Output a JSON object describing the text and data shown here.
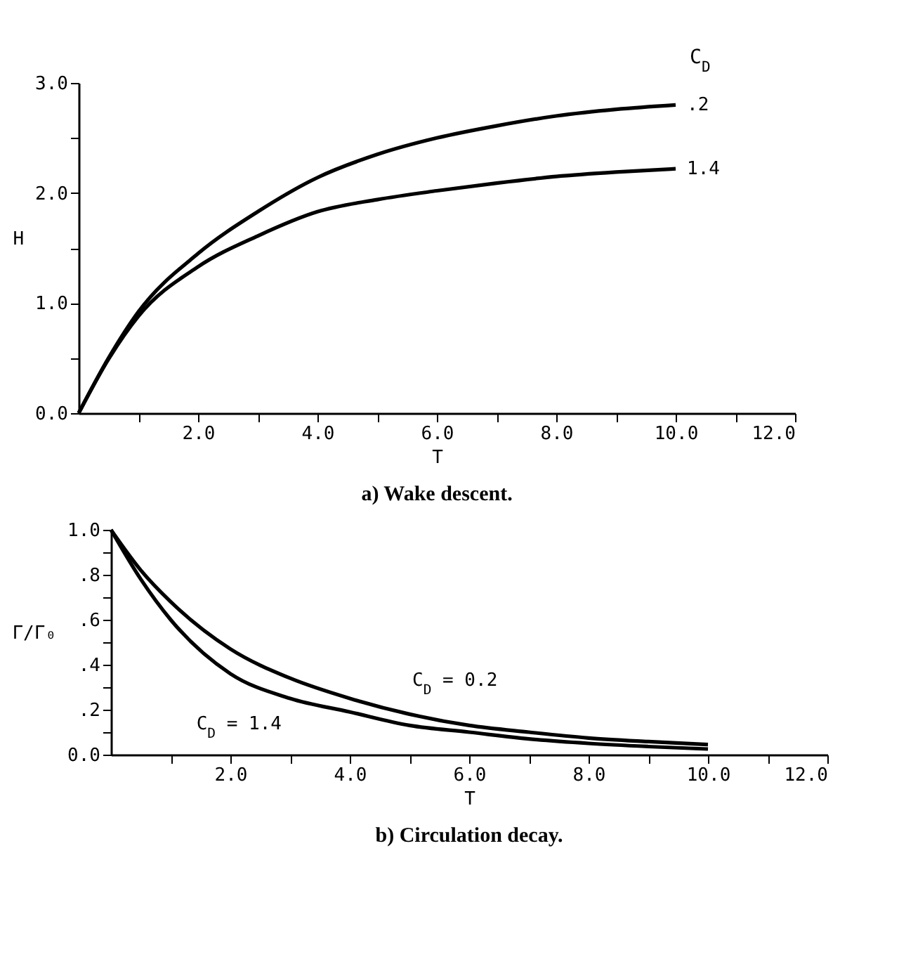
{
  "chart_data": [
    {
      "type": "line",
      "title": "a) Wake descent.",
      "xlabel": "T",
      "ylabel": "H",
      "legend_title": "C$_{D}$",
      "x": [
        0,
        0.5,
        1,
        2,
        3,
        4,
        5,
        6,
        7,
        8,
        9,
        10
      ],
      "series": [
        {
          "name": ".2",
          "color": "#000000",
          "values": [
            0,
            0.5,
            0.92,
            1.45,
            1.83,
            2.14,
            2.35,
            2.5,
            2.61,
            2.7,
            2.76,
            2.8
          ]
        },
        {
          "name": "1.4",
          "color": "#000000",
          "values": [
            0,
            0.49,
            0.88,
            1.33,
            1.61,
            1.83,
            1.94,
            2.02,
            2.09,
            2.15,
            2.19,
            2.22
          ]
        }
      ],
      "xlim": [
        0,
        12
      ],
      "ylim": [
        0,
        3
      ],
      "xticks": [
        {
          "value": 1,
          "label": null
        },
        {
          "value": 2,
          "label": "2.0"
        },
        {
          "value": 3,
          "label": null
        },
        {
          "value": 4,
          "label": "4.0"
        },
        {
          "value": 5,
          "label": null
        },
        {
          "value": 6,
          "label": "6.0"
        },
        {
          "value": 7,
          "label": null
        },
        {
          "value": 8,
          "label": "8.0"
        },
        {
          "value": 9,
          "label": null
        },
        {
          "value": 10,
          "label": "10.0"
        },
        {
          "value": 11,
          "label": null
        },
        {
          "value": 12,
          "label": "12.0"
        }
      ],
      "yticks": [
        {
          "value": 0,
          "label": "0.0"
        },
        {
          "value": 0.5,
          "label": null
        },
        {
          "value": 1,
          "label": "1.0"
        },
        {
          "value": 1.5,
          "label": null
        },
        {
          "value": 2,
          "label": "2.0"
        },
        {
          "value": 2.5,
          "label": null
        },
        {
          "value": 3,
          "label": "3.0"
        }
      ],
      "grid": false
    },
    {
      "type": "line",
      "title": "b) Circulation decay.",
      "xlabel": "T",
      "ylabel": "Γ/Γ₀",
      "x": [
        0,
        0.5,
        1,
        2,
        3,
        4,
        5,
        6,
        7,
        8,
        9,
        10
      ],
      "series": [
        {
          "name": "C$_{D}$ = 0.2",
          "color": "#000000",
          "values": [
            1.0,
            0.82,
            0.68,
            0.47,
            0.34,
            0.25,
            0.18,
            0.13,
            0.1,
            0.074,
            0.058,
            0.045
          ]
        },
        {
          "name": "C$_{D}$ = 1.4",
          "color": "#000000",
          "values": [
            1.0,
            0.78,
            0.6,
            0.36,
            0.25,
            0.19,
            0.13,
            0.1,
            0.07,
            0.05,
            0.036,
            0.025
          ]
        }
      ],
      "xlim": [
        0,
        12
      ],
      "ylim": [
        0,
        1
      ],
      "xticks": [
        {
          "value": 1,
          "label": null
        },
        {
          "value": 2,
          "label": "2.0"
        },
        {
          "value": 3,
          "label": null
        },
        {
          "value": 4,
          "label": "4.0"
        },
        {
          "value": 5,
          "label": null
        },
        {
          "value": 6,
          "label": "6.0"
        },
        {
          "value": 7,
          "label": null
        },
        {
          "value": 8,
          "label": "8.0"
        },
        {
          "value": 9,
          "label": null
        },
        {
          "value": 10,
          "label": "10.0"
        },
        {
          "value": 11,
          "label": null
        },
        {
          "value": 12,
          "label": "12.0"
        }
      ],
      "yticks": [
        {
          "value": 0,
          "label": "0.0"
        },
        {
          "value": 0.1,
          "label": null
        },
        {
          "value": 0.2,
          "label": ".2"
        },
        {
          "value": 0.3,
          "label": null
        },
        {
          "value": 0.4,
          "label": ".4"
        },
        {
          "value": 0.5,
          "label": null
        },
        {
          "value": 0.6,
          "label": ".6"
        },
        {
          "value": 0.7,
          "label": null
        },
        {
          "value": 0.8,
          "label": ".8"
        },
        {
          "value": 0.9,
          "label": null
        },
        {
          "value": 1,
          "label": "1.0"
        }
      ],
      "grid": false
    }
  ]
}
